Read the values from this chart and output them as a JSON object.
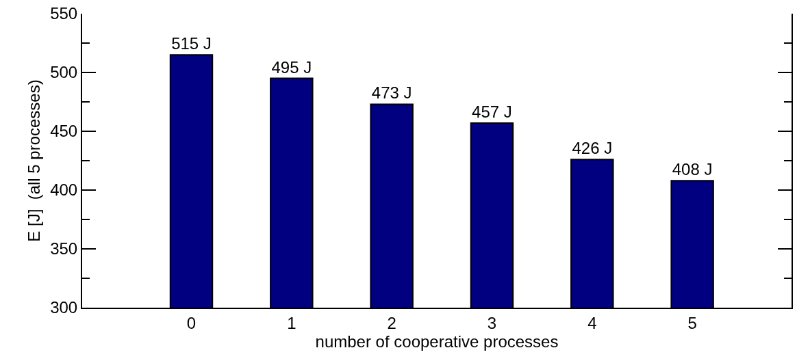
{
  "chart_data": {
    "type": "bar",
    "xlabel": "number of cooperative processes",
    "ylabel": "E [J]  (all 5 processes)",
    "categories": [
      "0",
      "1",
      "2",
      "3",
      "4",
      "5"
    ],
    "values": [
      515,
      495,
      473,
      457,
      426,
      408
    ],
    "value_labels": [
      "515 J",
      "495 J",
      "473 J",
      "457 J",
      "426 J",
      "408 J"
    ],
    "color": "#000080",
    "ylim": [
      300,
      550
    ],
    "yticks": [
      300,
      {
        "value": 325,
        "label": null
      },
      350,
      {
        "value": 375,
        "label": null
      },
      400,
      {
        "value": 425,
        "label": null
      },
      450,
      {
        "value": 475,
        "label": null
      },
      500,
      {
        "value": 525,
        "label": null
      },
      550
    ],
    "grid": false
  }
}
